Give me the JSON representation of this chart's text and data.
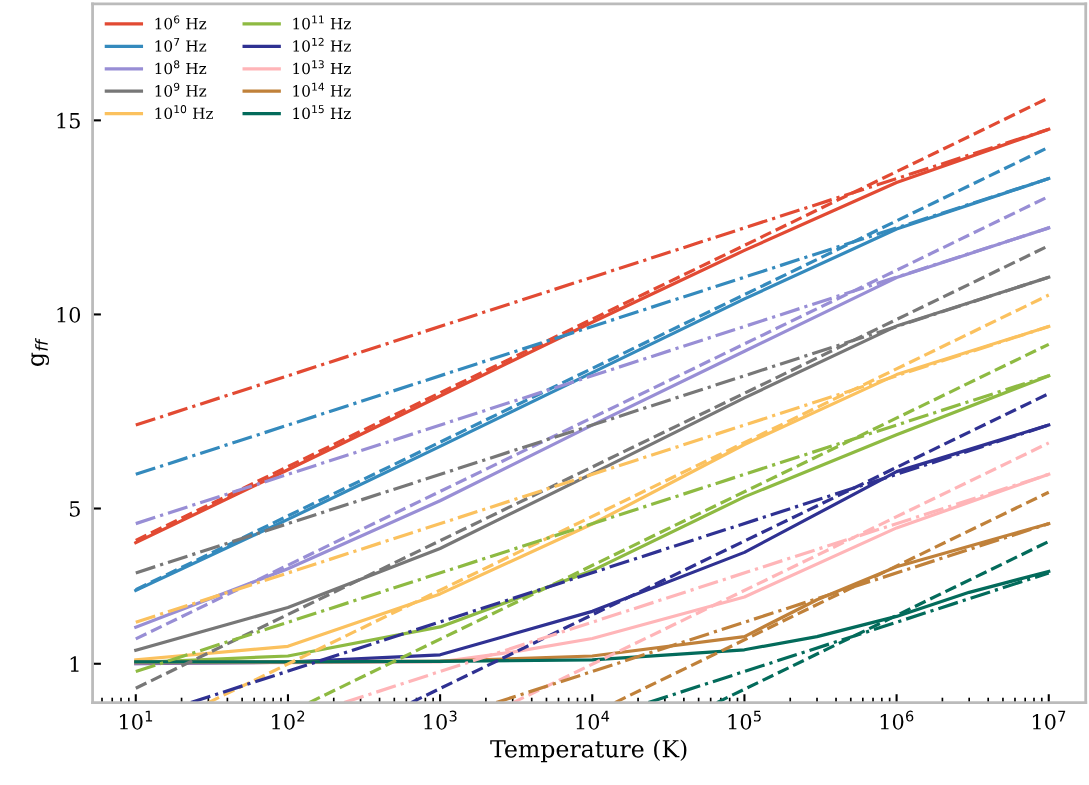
{
  "chart_data": {
    "type": "line",
    "xlabel": "Temperature (K)",
    "ylabel": "g$_{ff}$",
    "log": "x",
    "grid": false,
    "legend": "top left",
    "marker": "none",
    "xlim": [
      5.2,
      17500000
    ],
    "ylim": [
      0,
      18
    ],
    "xticks": [
      {
        "value": 10,
        "label": "10$^{1}$"
      },
      {
        "value": 100,
        "label": "10$^{2}$"
      },
      {
        "value": 1000,
        "label": "10$^{3}$"
      },
      {
        "value": 10000,
        "label": "10$^{4}$"
      },
      {
        "value": 100000,
        "label": "10$^{5}$"
      },
      {
        "value": 1000000,
        "label": "10$^{6}$"
      },
      {
        "value": 10000000,
        "label": "10$^{7}$"
      }
    ],
    "yticks": [
      1,
      5,
      10,
      15
    ],
    "series": [
      {
        "name": "10$^{6}$ Hz",
        "color": "#e24a33",
        "line_style": "solid",
        "x": [
          10,
          100,
          1000,
          10000,
          100000,
          1000000,
          10000000
        ],
        "values": [
          4.12,
          6.0,
          7.9,
          9.8,
          11.65,
          13.4,
          14.77
        ]
      },
      {
        "name": "10$^{7}$ Hz",
        "color": "#348abd",
        "line_style": "solid",
        "x": [
          10,
          100,
          1000,
          10000,
          100000,
          1000000,
          10000000
        ],
        "values": [
          2.89,
          4.72,
          6.6,
          8.5,
          10.4,
          12.2,
          13.5
        ]
      },
      {
        "name": "10$^{8}$ Hz",
        "color": "#988ed5",
        "line_style": "solid",
        "x": [
          10,
          100,
          1000,
          10000,
          100000,
          1000000,
          10000000
        ],
        "values": [
          1.94,
          3.45,
          5.2,
          7.15,
          9.05,
          10.95,
          12.23
        ]
      },
      {
        "name": "10$^{9}$ Hz",
        "color": "#777777",
        "line_style": "solid",
        "x": [
          10,
          100,
          1000,
          10000,
          100000,
          1000000,
          10000000
        ],
        "values": [
          1.35,
          2.45,
          3.97,
          5.9,
          7.85,
          9.7,
          10.96
        ]
      },
      {
        "name": "10$^{10}$ Hz",
        "color": "#fbc15e",
        "line_style": "solid",
        "x": [
          10,
          100,
          1000,
          10000,
          100000,
          1000000,
          10000000
        ],
        "values": [
          1.1,
          1.45,
          2.8,
          4.6,
          6.65,
          8.45,
          9.69
        ]
      },
      {
        "name": "10$^{11}$ Hz",
        "color": "#8eba42",
        "line_style": "solid",
        "x": [
          10,
          100,
          1000,
          10000,
          100000,
          1000000,
          10000000
        ],
        "values": [
          1.03,
          1.2,
          1.95,
          3.4,
          5.3,
          6.9,
          8.42
        ]
      },
      {
        "name": "10$^{12}$ Hz",
        "color": "#2f3192",
        "line_style": "solid",
        "x": [
          10,
          100,
          1000,
          10000,
          100000,
          1000000,
          10000000
        ],
        "values": [
          1.0,
          1.04,
          1.23,
          2.35,
          3.87,
          5.95,
          7.15
        ]
      },
      {
        "name": "10$^{13}$ Hz",
        "color": "#ffb5b8",
        "line_style": "solid",
        "x": [
          10,
          100,
          1000,
          3000,
          10000,
          100000,
          1000000,
          10000000
        ],
        "values": [
          1.02,
          1.03,
          1.05,
          1.3,
          1.65,
          2.72,
          4.5,
          5.88
        ]
      },
      {
        "name": "10$^{14}$ Hz",
        "color": "#c0813a",
        "line_style": "solid",
        "x": [
          10,
          100,
          1000,
          10000,
          100000,
          300000,
          1000000,
          10000000
        ],
        "values": [
          1.05,
          1.05,
          1.07,
          1.2,
          1.7,
          2.65,
          3.5,
          4.61
        ]
      },
      {
        "name": "10$^{15}$ Hz",
        "color": "#036b5b",
        "line_style": "solid",
        "x": [
          10,
          100,
          1000,
          10000,
          100000,
          300000,
          1000000,
          3000000,
          10000000
        ],
        "values": [
          1.05,
          1.05,
          1.06,
          1.1,
          1.36,
          1.7,
          2.22,
          2.84,
          3.38
        ]
      },
      {
        "color": "#e24a33",
        "line_style": "dashed",
        "x": [
          10,
          10000000
        ],
        "values": [
          4.18,
          15.58
        ]
      },
      {
        "color": "#348abd",
        "line_style": "dashed",
        "x": [
          10,
          10000000
        ],
        "values": [
          2.91,
          14.31
        ]
      },
      {
        "color": "#988ed5",
        "line_style": "dashed",
        "x": [
          10,
          10000000
        ],
        "values": [
          1.64,
          13.04
        ]
      },
      {
        "color": "#777777",
        "line_style": "dashed",
        "x": [
          10,
          10000000
        ],
        "values": [
          0.37,
          11.77
        ]
      },
      {
        "color": "#fbc15e",
        "line_style": "dashed",
        "x": [
          30,
          10000000
        ],
        "values": [
          0,
          10.5
        ]
      },
      {
        "color": "#8eba42",
        "line_style": "dashed",
        "x": [
          138,
          10000000
        ],
        "values": [
          0,
          9.23
        ]
      },
      {
        "color": "#2f3192",
        "line_style": "dashed",
        "x": [
          645,
          10000000
        ],
        "values": [
          0,
          7.96
        ]
      },
      {
        "color": "#ffb5b8",
        "line_style": "dashed",
        "x": [
          3020,
          10000000
        ],
        "values": [
          0,
          6.69
        ]
      },
      {
        "color": "#c0813a",
        "line_style": "dashed",
        "x": [
          14100,
          10000000
        ],
        "values": [
          0,
          5.42
        ]
      },
      {
        "color": "#036b5b",
        "line_style": "dashed",
        "x": [
          66000,
          10000000
        ],
        "values": [
          0,
          4.15
        ]
      },
      {
        "color": "#e24a33",
        "line_style": "dashdot",
        "x": [
          10,
          10000000
        ],
        "values": [
          7.15,
          14.77
        ]
      },
      {
        "color": "#348abd",
        "line_style": "dashdot",
        "x": [
          10,
          10000000
        ],
        "values": [
          5.88,
          13.5
        ]
      },
      {
        "color": "#988ed5",
        "line_style": "dashdot",
        "x": [
          10,
          10000000
        ],
        "values": [
          4.61,
          12.23
        ]
      },
      {
        "color": "#777777",
        "line_style": "dashdot",
        "x": [
          10,
          10000000
        ],
        "values": [
          3.34,
          10.96
        ]
      },
      {
        "color": "#fbc15e",
        "line_style": "dashdot",
        "x": [
          10,
          10000000
        ],
        "values": [
          2.07,
          9.69
        ]
      },
      {
        "color": "#8eba42",
        "line_style": "dashdot",
        "x": [
          10,
          10000000
        ],
        "values": [
          0.8,
          8.42
        ]
      },
      {
        "color": "#2f3192",
        "line_style": "dashdot",
        "x": [
          23,
          10000000
        ],
        "values": [
          0,
          7.15
        ]
      },
      {
        "color": "#ffb5b8",
        "line_style": "dashdot",
        "x": [
          234,
          10000000
        ],
        "values": [
          0,
          5.88
        ]
      },
      {
        "color": "#c0813a",
        "line_style": "dashdot",
        "x": [
          2340,
          10000000
        ],
        "values": [
          0,
          4.61
        ]
      },
      {
        "color": "#036b5b",
        "line_style": "dashdot",
        "x": [
          23400,
          10000000
        ],
        "values": [
          0,
          3.34
        ]
      }
    ]
  }
}
